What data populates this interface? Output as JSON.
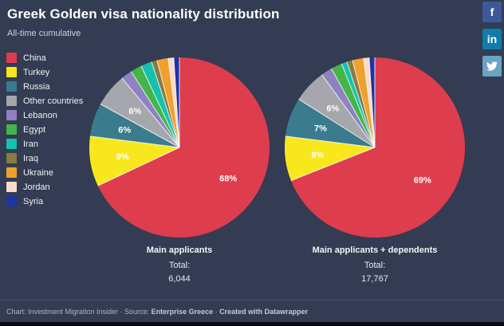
{
  "header": {
    "title": "Greek Golden visa nationality distribution",
    "subtitle": "All-time cumulative"
  },
  "social": {
    "facebook": {
      "label": "f",
      "color": "#3b5998"
    },
    "linkedin": {
      "label": "in",
      "color": "#107cac"
    },
    "twitter": {
      "color": "#6ba3c4"
    }
  },
  "legend": {
    "items": [
      {
        "label": "China",
        "color": "#dd3d4d"
      },
      {
        "label": "Turkey",
        "color": "#f8e71c"
      },
      {
        "label": "Russia",
        "color": "#3a7b8e"
      },
      {
        "label": "Other countries",
        "color": "#a6a6ad"
      },
      {
        "label": "Lebanon",
        "color": "#8e82c2"
      },
      {
        "label": "Egypt",
        "color": "#43b549"
      },
      {
        "label": "Iran",
        "color": "#16c2ad"
      },
      {
        "label": "Iraq",
        "color": "#877a43"
      },
      {
        "label": "Ukraine",
        "color": "#f0a02e"
      },
      {
        "label": "Jordan",
        "color": "#f8dcc9"
      },
      {
        "label": "Syria",
        "color": "#1c34a4"
      }
    ]
  },
  "chart_data": [
    {
      "type": "pie",
      "title": "Main applicants",
      "total_label": "Total:",
      "total": "6,044",
      "categories": [
        "China",
        "Turkey",
        "Russia",
        "Other countries",
        "Lebanon",
        "Egypt",
        "Iran",
        "Iraq",
        "Ukraine",
        "Jordan",
        "Syria"
      ],
      "values": [
        68,
        9,
        6,
        6,
        2,
        2,
        2,
        1,
        2,
        1,
        1
      ],
      "unit": "%",
      "visible_labels": [
        "68%",
        "9%",
        "6%",
        "6%"
      ],
      "label_min": 6,
      "legend_position": "left",
      "start_angle": "top",
      "direction": "clockwise"
    },
    {
      "type": "pie",
      "title": "Main applicants + dependents",
      "total_label": "Total:",
      "total": "17,767",
      "categories": [
        "China",
        "Turkey",
        "Russia",
        "Other countries",
        "Lebanon",
        "Egypt",
        "Iran",
        "Iraq",
        "Ukraine",
        "Jordan",
        "Syria"
      ],
      "values": [
        69,
        8,
        7,
        6,
        2,
        2,
        1,
        1,
        2,
        1,
        1
      ],
      "unit": "%",
      "visible_labels": [
        "69%",
        "8%",
        "7%",
        "6%"
      ],
      "label_min": 6,
      "legend_position": "left",
      "start_angle": "top",
      "direction": "clockwise"
    }
  ],
  "footer": {
    "parts": [
      {
        "text": "Chart: Investment Migration Insider · Source: ",
        "bold": false
      },
      {
        "text": "Enterprise Greece",
        "bold": true
      },
      {
        "text": " · ",
        "bold": false
      },
      {
        "text": "Created with Datawrapper",
        "bold": true
      }
    ]
  },
  "theme": {
    "background": "#333c52",
    "label_color": "#ffffff",
    "separator_color": "#ffffff"
  }
}
